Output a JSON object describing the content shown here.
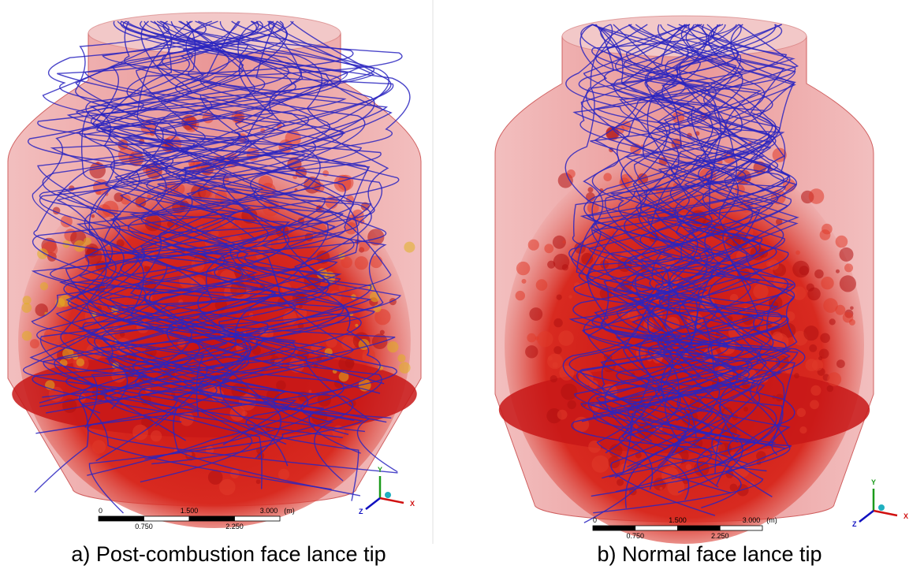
{
  "panels": [
    {
      "caption": "a)  Post-combustion face lance tip",
      "scale_bar": {
        "top_labels": [
          "0",
          "1.500",
          "3.000",
          "(m)"
        ],
        "bottom_labels": [
          "0.750",
          "2.250"
        ]
      },
      "axes": {
        "y": "Y",
        "x": "X",
        "z": "Z"
      }
    },
    {
      "caption": "b) Normal face lance tip",
      "scale_bar": {
        "top_labels": [
          "0",
          "1.500",
          "3.000",
          "(m)"
        ],
        "bottom_labels": [
          "0.750",
          "2.250"
        ]
      },
      "axes": {
        "y": "Y",
        "x": "X",
        "z": "Z"
      }
    }
  ]
}
